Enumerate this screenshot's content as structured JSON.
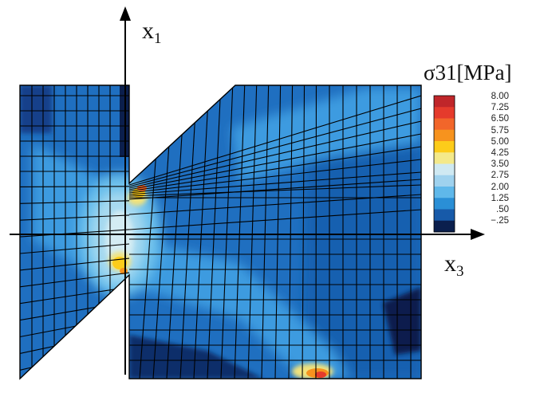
{
  "axes": {
    "vertical": {
      "symbol": "x",
      "subscript": "1"
    },
    "horizontal": {
      "symbol": "x",
      "subscript": "3"
    }
  },
  "legend": {
    "title": "σ31[MPa]",
    "ticks": [
      "8.00",
      "7.25",
      "6.50",
      "5.75",
      "5.00",
      "4.25",
      "3.50",
      "2.75",
      "2.00",
      "1.25",
      ".50",
      "−.25"
    ],
    "colors": [
      "#c0262a",
      "#e53b2c",
      "#f2662a",
      "#f7931e",
      "#fdcc1a",
      "#f4e98a",
      "#cfe9f2",
      "#9fd2ee",
      "#5fb8ea",
      "#2a8fd6",
      "#175aa9",
      "#0b1f4d"
    ]
  },
  "colors": {
    "background": "#1f6fc0",
    "mesh": "#000000",
    "axis": "#000000"
  }
}
